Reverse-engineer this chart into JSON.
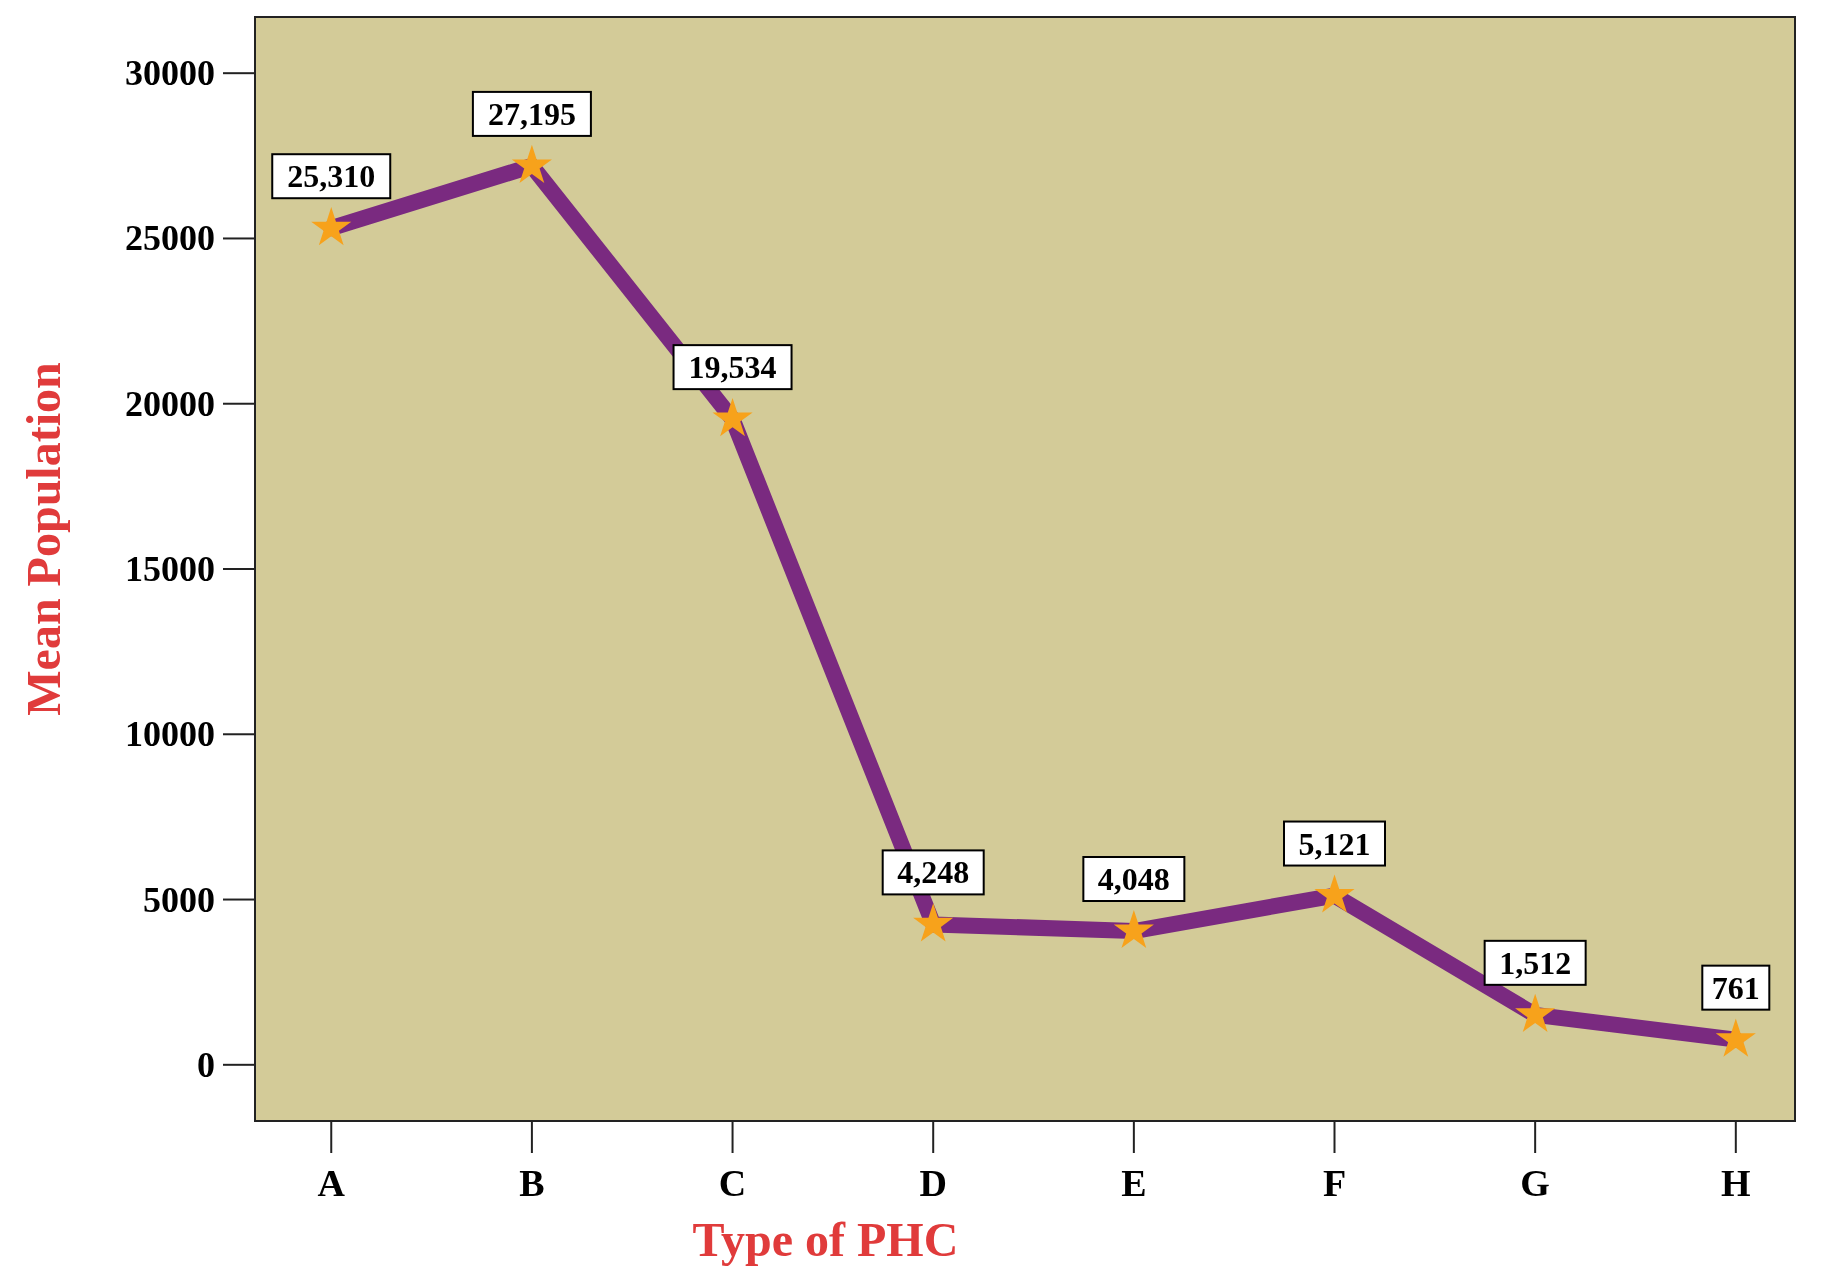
{
  "chart_data": {
    "type": "line",
    "xlabel": "Type of PHC",
    "ylabel": "Mean Population",
    "categories": [
      "A",
      "B",
      "C",
      "D",
      "E",
      "F",
      "G",
      "H"
    ],
    "series": [
      {
        "color": "#7a2a80",
        "values": [
          25310,
          27195,
          19534,
          4248,
          4048,
          5121,
          1512,
          761
        ],
        "value_labels": [
          "25,310",
          "27,195",
          "19,534",
          "4,248",
          "4,048",
          "5,121",
          "1,512",
          "761"
        ]
      }
    ],
    "ylim": [
      -1700,
      31700
    ],
    "yticks": [
      0,
      5000,
      10000,
      15000,
      20000,
      25000,
      30000
    ],
    "grid": false,
    "marker": "star",
    "line_style": "solid"
  }
}
